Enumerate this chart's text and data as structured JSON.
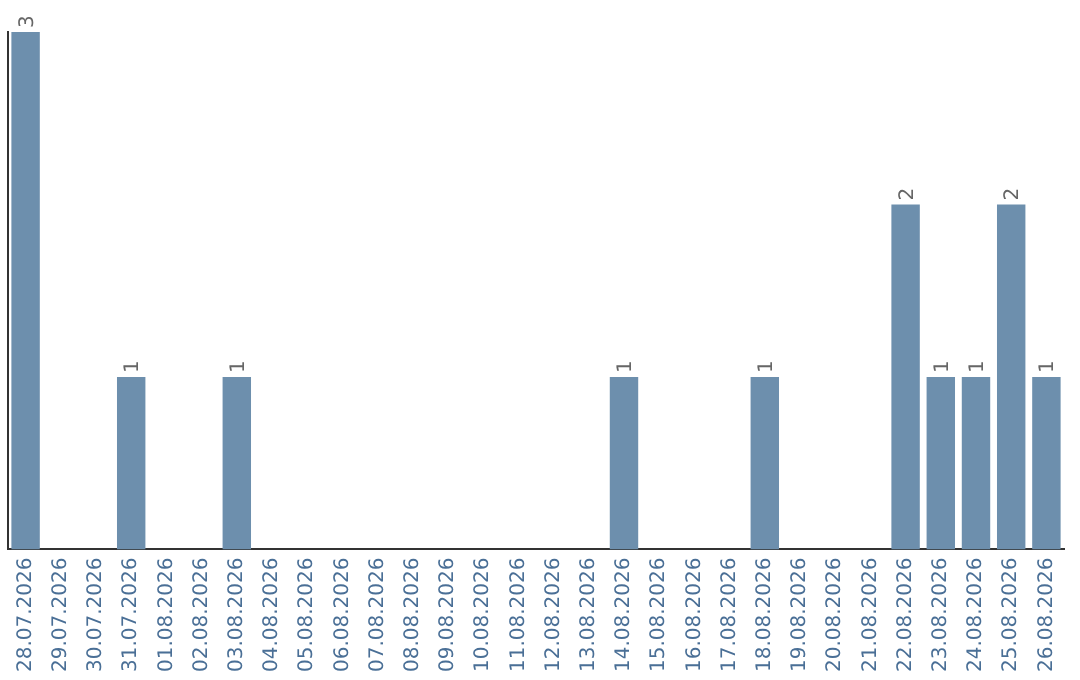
{
  "chart_data": {
    "type": "bar",
    "categories": [
      "28.07.2026",
      "29.07.2026",
      "30.07.2026",
      "31.07.2026",
      "01.08.2026",
      "02.08.2026",
      "03.08.2026",
      "04.08.2026",
      "05.08.2026",
      "06.08.2026",
      "07.08.2026",
      "08.08.2026",
      "09.08.2026",
      "10.08.2026",
      "11.08.2026",
      "12.08.2026",
      "13.08.2026",
      "14.08.2026",
      "15.08.2026",
      "16.08.2026",
      "17.08.2026",
      "18.08.2026",
      "19.08.2026",
      "20.08.2026",
      "21.08.2026",
      "22.08.2026",
      "23.08.2026",
      "24.08.2026",
      "25.08.2026",
      "26.08.2026"
    ],
    "values": [
      3,
      0,
      0,
      1,
      0,
      0,
      1,
      0,
      0,
      0,
      0,
      0,
      0,
      0,
      0,
      0,
      0,
      1,
      0,
      0,
      0,
      1,
      0,
      0,
      0,
      2,
      1,
      1,
      2,
      1
    ],
    "value_labels": [
      "3",
      null,
      null,
      "1",
      null,
      null,
      "1",
      null,
      null,
      null,
      null,
      null,
      null,
      null,
      null,
      null,
      null,
      "1",
      null,
      null,
      null,
      "1",
      null,
      null,
      null,
      "2",
      "1",
      "1",
      "2",
      "1"
    ],
    "color": "#6d8fad",
    "grid": false,
    "legend": false,
    "tick_labels": "x"
  }
}
